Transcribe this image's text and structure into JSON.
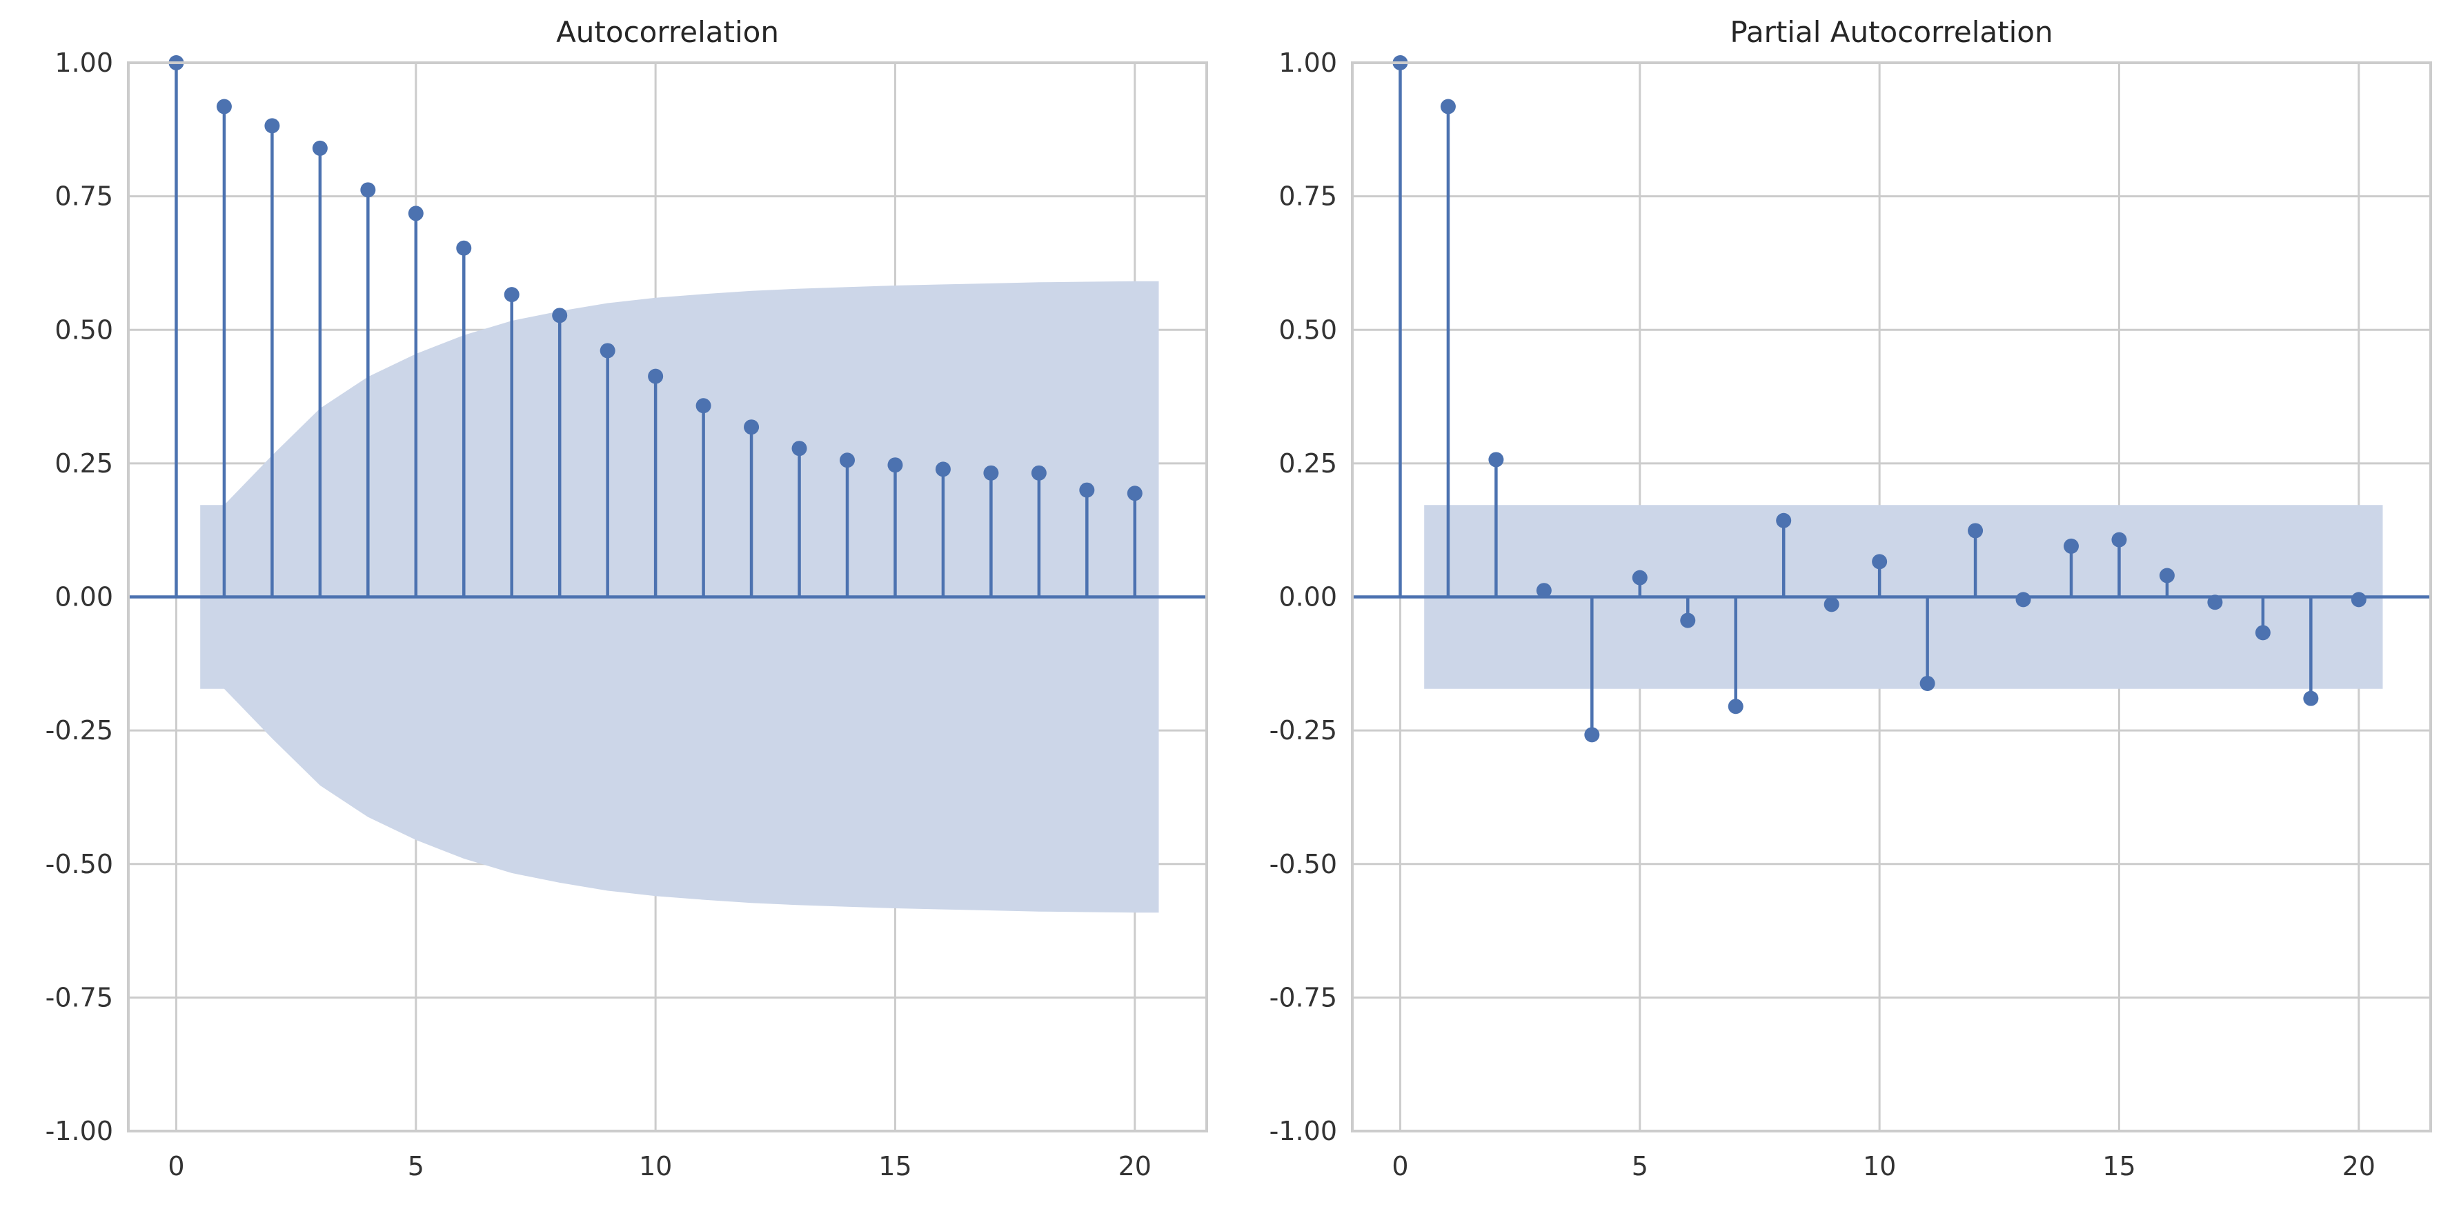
{
  "chart_data": [
    {
      "type": "stem",
      "title": "Autocorrelation",
      "xlabel": "",
      "ylabel": "",
      "xlim": [
        -1,
        21.5
      ],
      "ylim": [
        -1.0,
        1.0
      ],
      "xticks": [
        0,
        5,
        10,
        15,
        20
      ],
      "yticks": [
        "-1.00",
        "-0.75",
        "-0.50",
        "-0.25",
        "0.00",
        "0.25",
        "0.50",
        "0.75",
        "1.00"
      ],
      "grid": true,
      "x": [
        0,
        1,
        2,
        3,
        4,
        5,
        6,
        7,
        8,
        9,
        10,
        11,
        12,
        13,
        14,
        15,
        16,
        17,
        18,
        19,
        20
      ],
      "values": [
        1.0,
        0.918,
        0.882,
        0.84,
        0.762,
        0.718,
        0.653,
        0.566,
        0.527,
        0.461,
        0.413,
        0.358,
        0.318,
        0.278,
        0.256,
        0.247,
        0.239,
        0.232,
        0.232,
        0.2,
        0.194
      ],
      "confidence_band": {
        "x": [
          0.5,
          1,
          2,
          3,
          4,
          5,
          6,
          7,
          8,
          9,
          10,
          11,
          12,
          13,
          14,
          15,
          16,
          17,
          18,
          19,
          20,
          20.5
        ],
        "upper": [
          0.172,
          0.172,
          0.265,
          0.353,
          0.412,
          0.455,
          0.49,
          0.517,
          0.535,
          0.55,
          0.56,
          0.567,
          0.573,
          0.577,
          0.58,
          0.583,
          0.585,
          0.587,
          0.589,
          0.59,
          0.591,
          0.591
        ]
      },
      "colors": {
        "stem": "#4c72b0",
        "band": "#ccd6e8",
        "axis_line": "#4c72b0"
      }
    },
    {
      "type": "stem",
      "title": "Partial Autocorrelation",
      "xlabel": "",
      "ylabel": "",
      "xlim": [
        -1,
        21.5
      ],
      "ylim": [
        -1.0,
        1.0
      ],
      "xticks": [
        0,
        5,
        10,
        15,
        20
      ],
      "yticks": [
        "-1.00",
        "-0.75",
        "-0.50",
        "-0.25",
        "0.00",
        "0.25",
        "0.50",
        "0.75",
        "1.00"
      ],
      "grid": true,
      "x": [
        0,
        1,
        2,
        3,
        4,
        5,
        6,
        7,
        8,
        9,
        10,
        11,
        12,
        13,
        14,
        15,
        16,
        17,
        18,
        19,
        20
      ],
      "values": [
        1.0,
        0.918,
        0.257,
        0.012,
        -0.258,
        0.036,
        -0.044,
        -0.205,
        0.143,
        -0.014,
        0.066,
        -0.162,
        0.124,
        -0.005,
        0.095,
        0.107,
        0.04,
        -0.01,
        -0.067,
        -0.19,
        -0.005
      ],
      "confidence_band": {
        "x": [
          0.5,
          20.5
        ],
        "upper": [
          0.172,
          0.172
        ]
      },
      "colors": {
        "stem": "#4c72b0",
        "band": "#ccd6e8",
        "axis_line": "#4c72b0"
      }
    }
  ]
}
